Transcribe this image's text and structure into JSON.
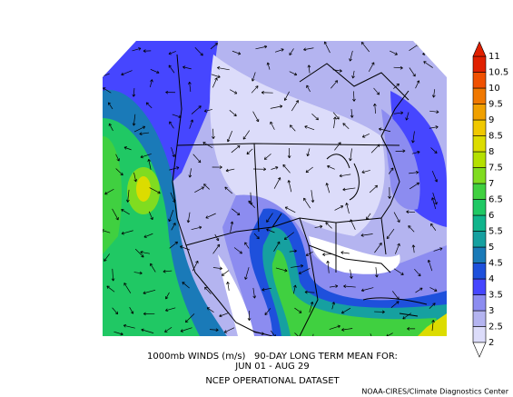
{
  "map": {
    "caption": [
      "1000mb WINDS (m/s)   90-DAY LONG TERM MEAN FOR:",
      "JUN 01 - AUG 29",
      "NCEP OPERATIONAL DATASET"
    ],
    "credit": "NOAA-CIRES/Climate Diagnostics Center",
    "colorbar": {
      "levels": [
        2,
        2.5,
        3,
        3.5,
        4,
        4.5,
        5,
        5.5,
        6,
        6.5,
        7,
        7.5,
        8,
        8.5,
        9,
        9.5,
        10,
        10.5,
        11
      ],
      "colors": [
        "#dcdcfa",
        "#b4b4f0",
        "#8c8cf0",
        "#4646ff",
        "#1e50dc",
        "#1a7ab8",
        "#16a0a0",
        "#10b48c",
        "#20c864",
        "#40d040",
        "#80dc20",
        "#b4e000",
        "#dcdc00",
        "#f0c800",
        "#f0a000",
        "#f07800",
        "#f05000",
        "#e02000"
      ]
    }
  }
}
